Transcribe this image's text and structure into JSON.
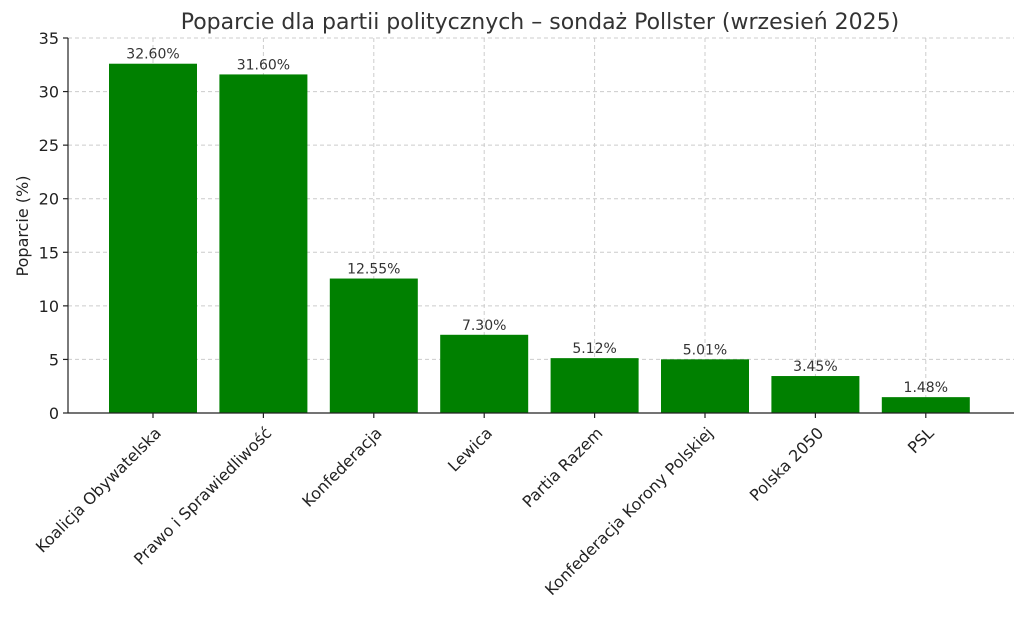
{
  "chart_data": {
    "type": "bar",
    "title": "Poparcie dla partii politycznych – sondaż Pollster (wrzesień 2025)",
    "xlabel": "",
    "ylabel": "Poparcie (%)",
    "ylim": [
      0,
      35
    ],
    "yticks": [
      0,
      5,
      10,
      15,
      20,
      25,
      30,
      35
    ],
    "grid": true,
    "bar_color": "#008000",
    "categories": [
      "Koalicja Obywatelska",
      "Prawo i Sprawiedliwość",
      "Konfederacja",
      "Lewica",
      "Partia Razem",
      "Konfederacja Korony Polskiej",
      "Polska 2050",
      "PSL"
    ],
    "values": [
      32.6,
      31.6,
      12.55,
      7.3,
      5.12,
      5.01,
      3.45,
      1.48
    ],
    "data_labels": [
      "32.60%",
      "31.60%",
      "12.55%",
      "7.30%",
      "5.12%",
      "5.01%",
      "3.45%",
      "1.48%"
    ]
  }
}
